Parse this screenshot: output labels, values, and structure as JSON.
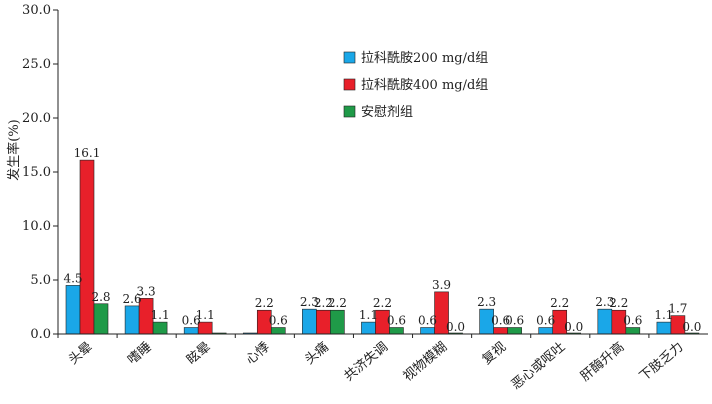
{
  "chart_data": {
    "type": "bar",
    "title": "",
    "xlabel": "",
    "ylabel": "发生率(%)",
    "ylim": [
      0,
      30
    ],
    "yticks": [
      "0.0",
      "5.0",
      "10.0",
      "15.0",
      "20.0",
      "25.0",
      "30.0"
    ],
    "grid": false,
    "legend_position": "top-right",
    "categories": [
      "头晕",
      "嗜睡",
      "眩晕",
      "心悸",
      "头痛",
      "共济失调",
      "视物模糊",
      "复视",
      "恶心或呕吐",
      "肝酶升高",
      "下肢乏力"
    ],
    "series": [
      {
        "name": "拉科酰胺200 mg/d组",
        "color": "#1aa7e8",
        "values": [
          4.5,
          2.6,
          0.6,
          0.0,
          2.3,
          1.1,
          0.6,
          2.3,
          0.6,
          2.3,
          1.1
        ],
        "labels": [
          "4.5",
          "2.6",
          "0.6",
          "",
          "2.3",
          "1.1",
          "0.6",
          "2.3",
          "0.6",
          "2.3",
          "1.1"
        ]
      },
      {
        "name": "拉科酰胺400 mg/d组",
        "color": "#e8202a",
        "values": [
          16.1,
          3.3,
          1.1,
          2.2,
          2.2,
          2.2,
          3.9,
          0.6,
          2.2,
          2.2,
          1.7
        ],
        "labels": [
          "16.1",
          "3.3",
          "1.1",
          "2.2",
          "2.2",
          "2.2",
          "3.9",
          "0.6",
          "2.2",
          "2.2",
          "1.7"
        ]
      },
      {
        "name": "安慰剂组",
        "color": "#1f9a48",
        "values": [
          2.8,
          1.1,
          0.0,
          0.6,
          2.2,
          0.6,
          0.0,
          0.6,
          0.0,
          0.6,
          0.0
        ],
        "labels": [
          "2.8",
          "1.1",
          "",
          "0.6",
          "2.2",
          "0.6",
          "0.0",
          "0.6",
          "0.0",
          "0.6",
          "0.0"
        ]
      }
    ]
  }
}
